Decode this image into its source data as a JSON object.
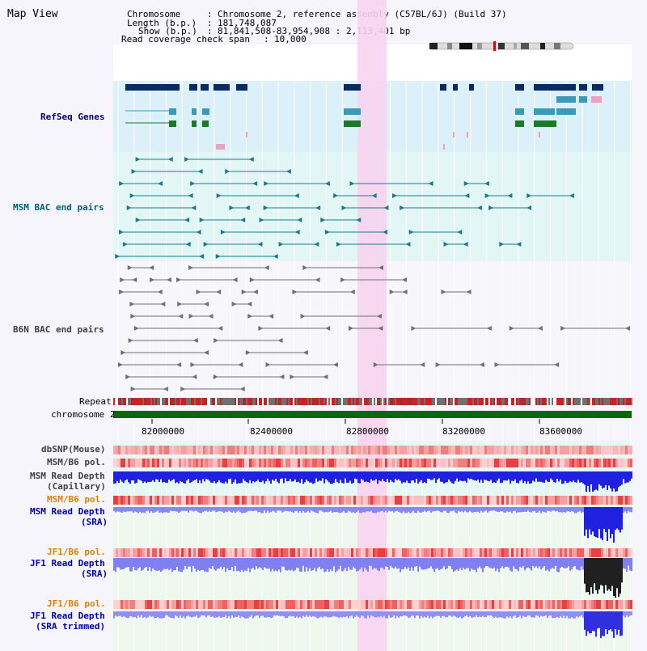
{
  "page_title": "Map View",
  "header": {
    "chromosome_key": "Chromosome",
    "chromosome_val": "Chromosome 2, reference assembly (C57BL/6J) (Build 37)",
    "length_key": "Length (b.p.)",
    "length_val": "181,748,087",
    "show_key": "Show (b.p.)",
    "show_val": "81,841,508-83,954,908 : 2,113,401 bp",
    "coverage_key": "Read coverage check span",
    "coverage_val": "10,000"
  },
  "axis": {
    "tick_labels": [
      "82000000",
      "82400000",
      "82800000",
      "83200000",
      "83600000"
    ],
    "chromosome_label": "chromosome 2",
    "repeat_label": "Repeat"
  },
  "tracks": {
    "refseq": "RefSeq Genes",
    "msm_bac": "MSM BAC end pairs",
    "b6n_bac": "B6N BAC end pairs",
    "dbsnp": "dbSNP(Mouse)",
    "msm_b6_pol_1": "MSM/B6 pol.",
    "msm_depth_cap_1": "MSM Read Depth",
    "msm_depth_cap_2": "(Capillary)",
    "msm_b6_pol_2": "MSM/B6 pol.",
    "msm_depth_sra_1": "MSM Read Depth",
    "msm_depth_sra_2": "(SRA)",
    "jf1_b6_pol_1": "JF1/B6 pol.",
    "jf1_depth_sra_1": "JF1 Read Depth",
    "jf1_depth_sra_2": "(SRA)",
    "jf1_b6_pol_2": "JF1/B6 pol.",
    "jf1_trim_1": "JF1 Read Depth",
    "jf1_trim_2": "(SRA trimmed)"
  },
  "colors": {
    "refseq_label": "#000080",
    "msm_label": "#006080",
    "b6n_label": "#404040",
    "orange_label": "#e08000",
    "blue_label": "#0000c0",
    "highlight": "#f8d0f0"
  }
}
